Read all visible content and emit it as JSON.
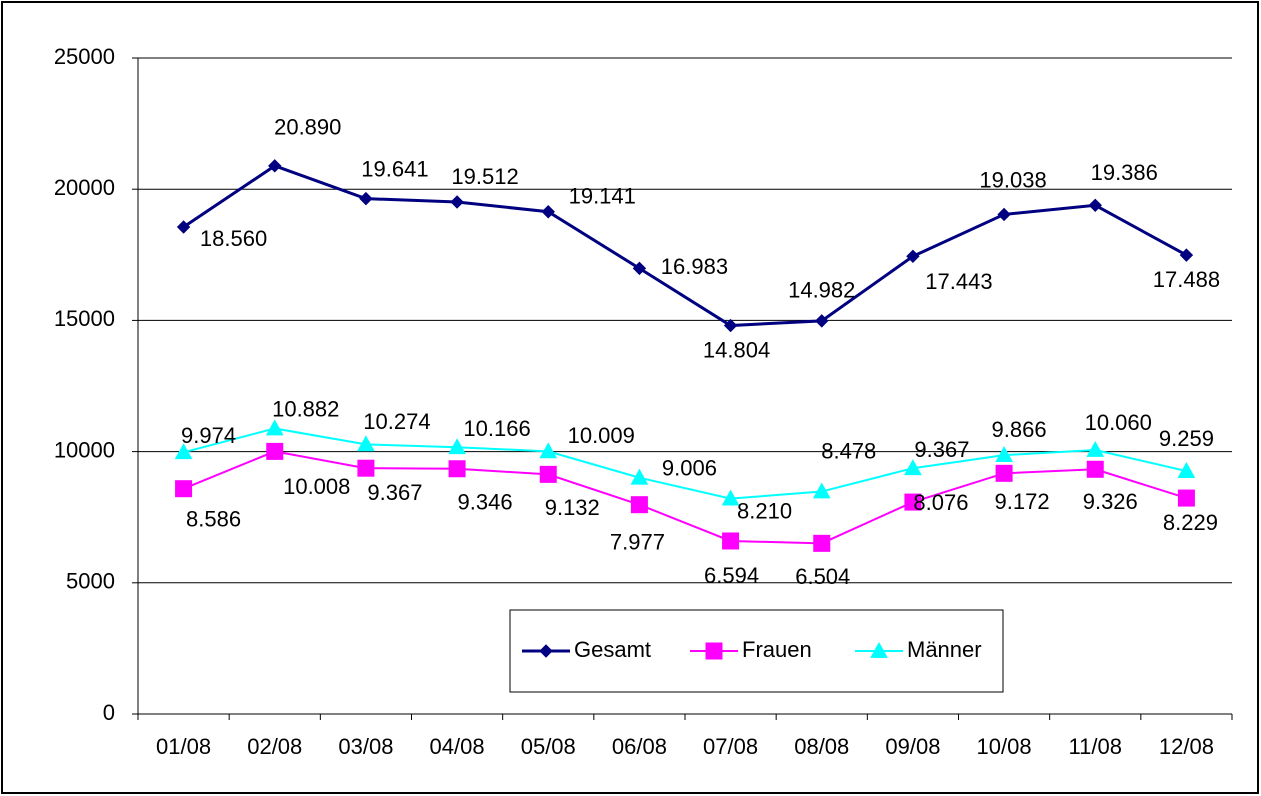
{
  "chart_data": {
    "type": "line",
    "categories": [
      "01/08",
      "02/08",
      "03/08",
      "04/08",
      "05/08",
      "06/08",
      "07/08",
      "08/08",
      "09/08",
      "10/08",
      "11/08",
      "12/08"
    ],
    "series": [
      {
        "name": "Gesamt",
        "color": "#000080",
        "marker": "diamond",
        "values": [
          18560,
          20890,
          19641,
          19512,
          19141,
          16983,
          14804,
          14982,
          17443,
          19038,
          19386,
          17488
        ],
        "value_labels": [
          "18.560",
          "20.890",
          "19.641",
          "19.512",
          "19.141",
          "16.983",
          "14.804",
          "14.982",
          "17.443",
          "19.038",
          "19.386",
          "17.488"
        ]
      },
      {
        "name": "Frauen",
        "color": "#ff00ff",
        "marker": "square",
        "values": [
          8586,
          10008,
          9367,
          9346,
          9132,
          7977,
          6594,
          6504,
          8076,
          9172,
          9326,
          8229
        ],
        "value_labels": [
          "8.586",
          "10.008",
          "9.367",
          "9.346",
          "9.132",
          "7.977",
          "6.594",
          "6.504",
          "8.076",
          "9.172",
          "9.326",
          "8.229"
        ]
      },
      {
        "name": "Männer",
        "color": "#00ffff",
        "marker": "triangle",
        "values": [
          9974,
          10882,
          10274,
          10166,
          10009,
          9006,
          8210,
          8478,
          9367,
          9866,
          10060,
          9259
        ],
        "value_labels": [
          "9.974",
          "10.882",
          "10.274",
          "10.166",
          "10.009",
          "9.006",
          "8.210",
          "8.478",
          "9.367",
          "9.866",
          "10.060",
          "9.259"
        ]
      }
    ],
    "ylim": [
      0,
      25000
    ],
    "yticks": [
      0,
      5000,
      10000,
      15000,
      20000,
      25000
    ],
    "grid": true,
    "legend": "bottom"
  }
}
